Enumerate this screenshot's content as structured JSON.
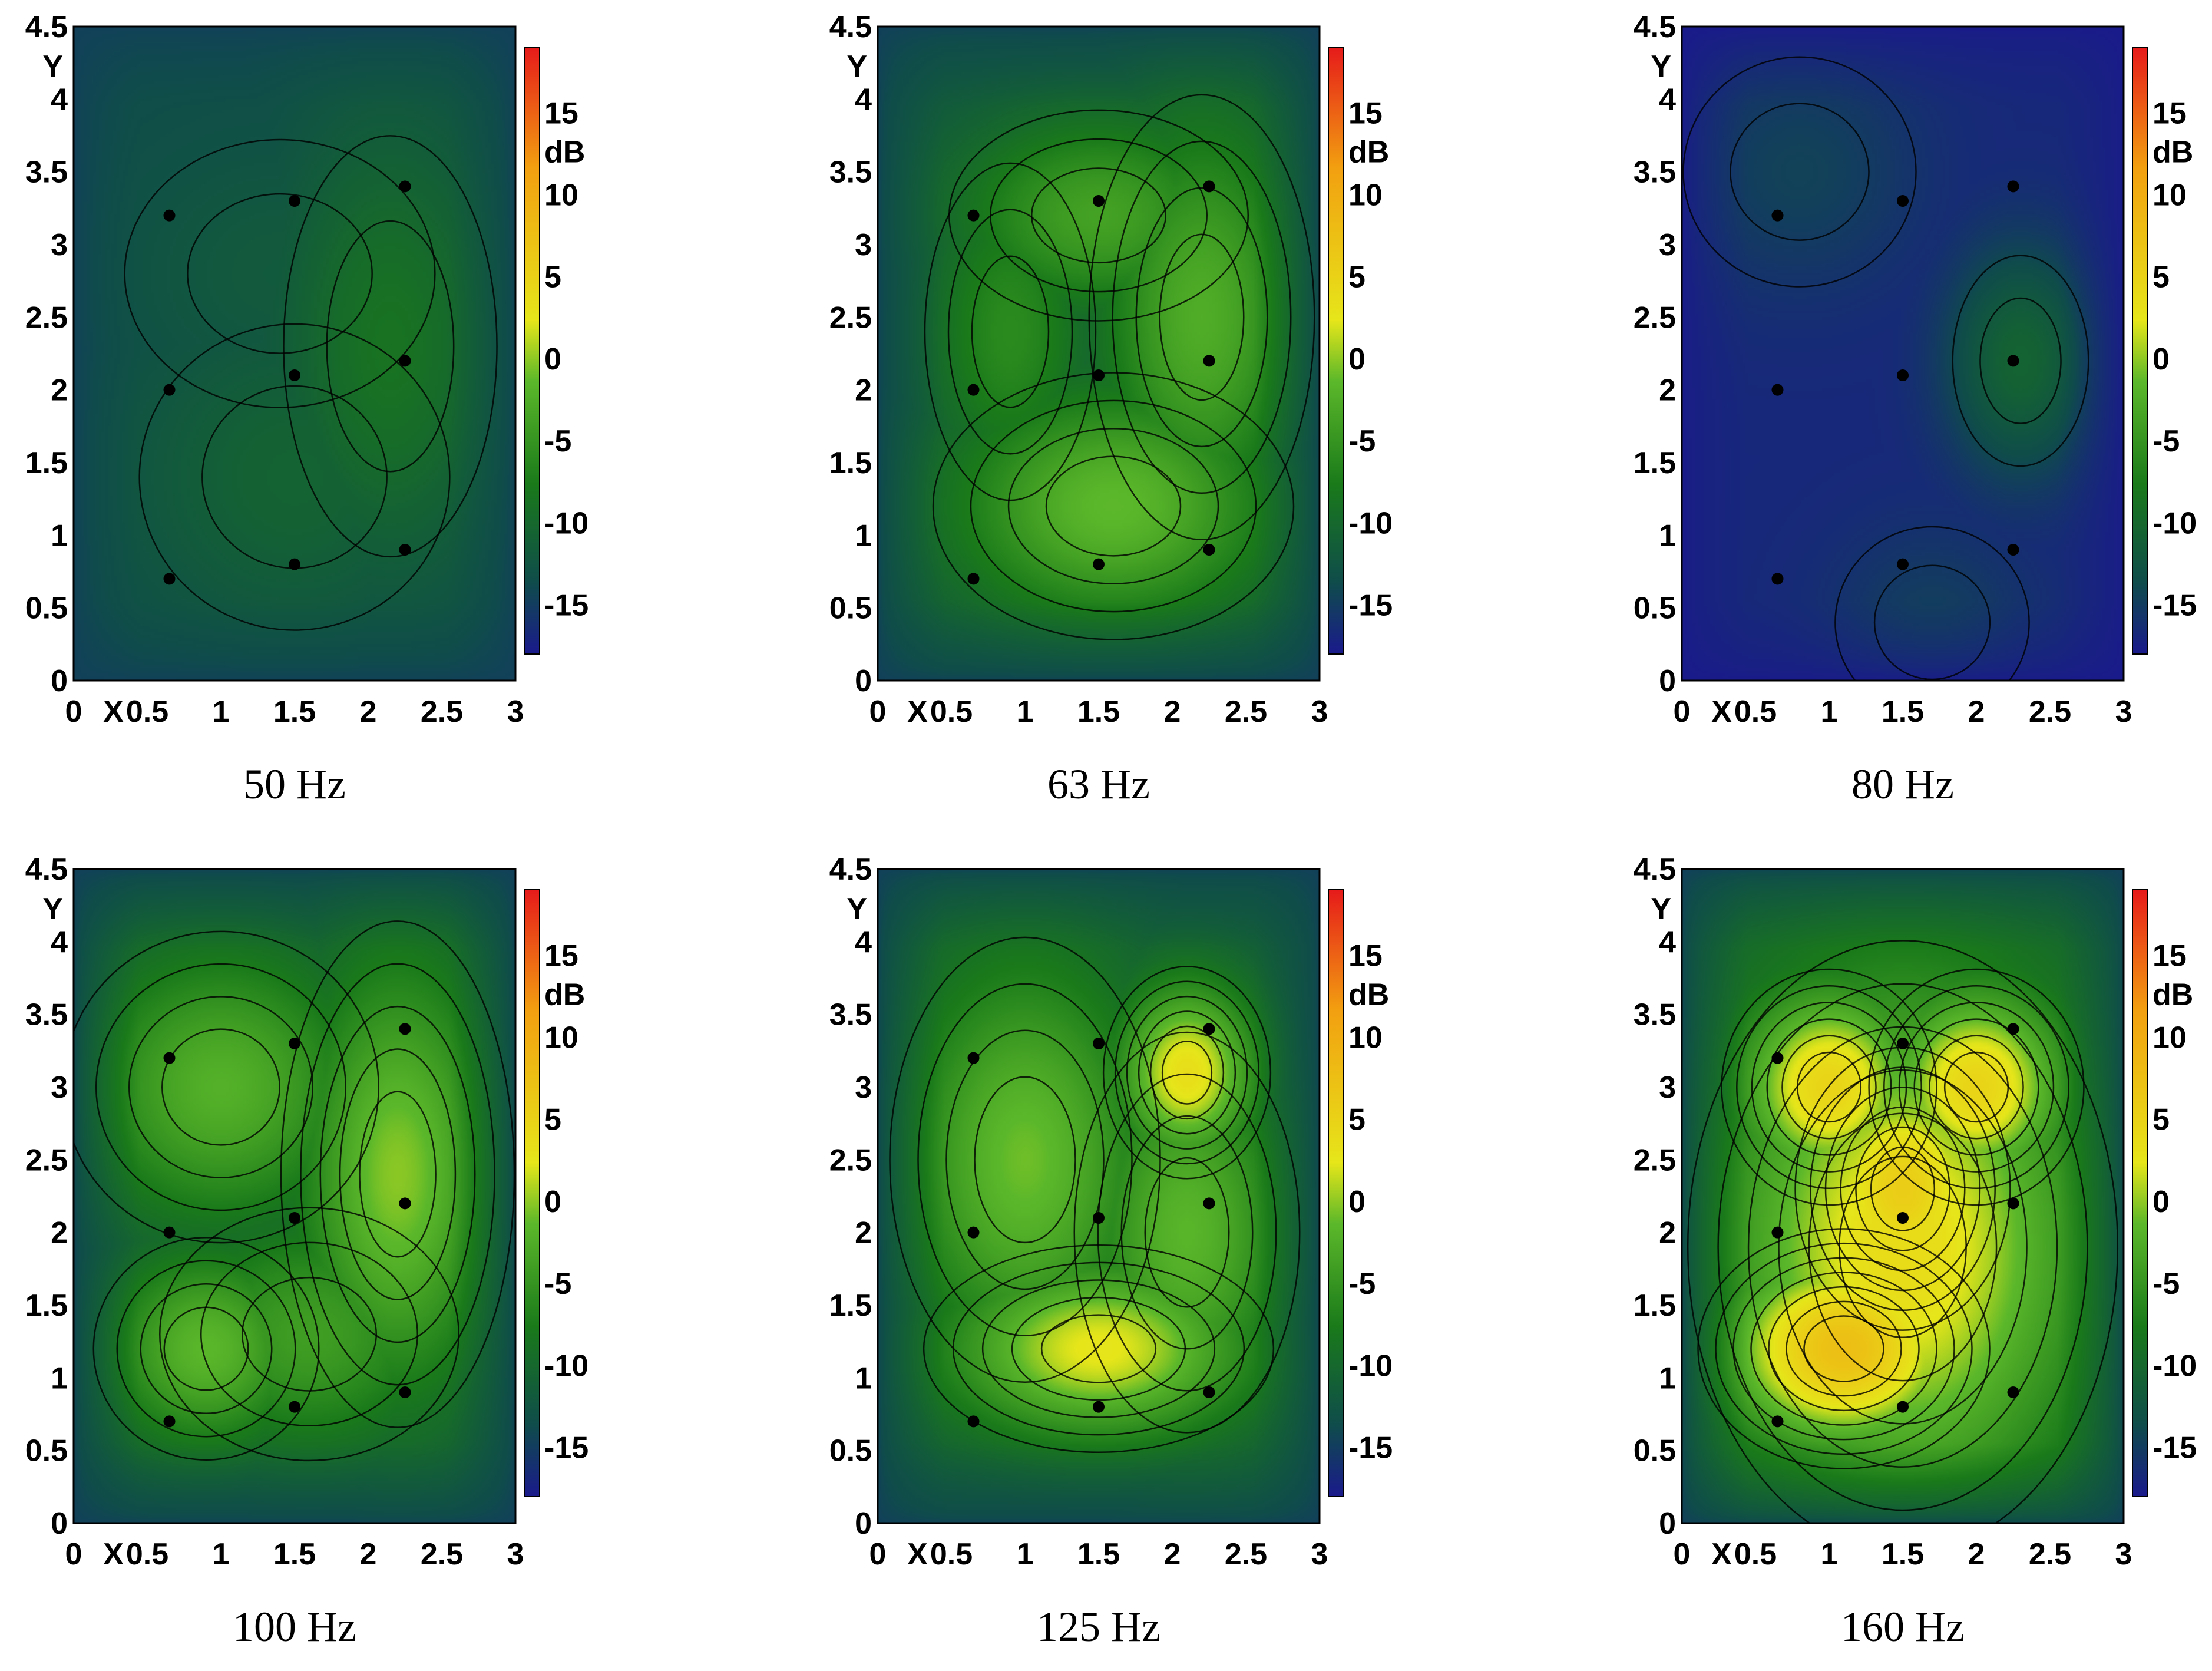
{
  "colorbar": {
    "unit": "dB",
    "range": [
      -18,
      19
    ],
    "ticks": [
      15,
      10,
      5,
      0,
      -5,
      -10,
      -15
    ],
    "colors": [
      "#1a1a8c",
      "#0f4d4a",
      "#1a7a1a",
      "#5cb82a",
      "#e6e61a",
      "#f2a010",
      "#e61a1a"
    ]
  },
  "chart_data": [
    {
      "type": "heatmap",
      "title": "50 Hz",
      "xlabel": "X",
      "ylabel": "Y",
      "xlim": [
        0,
        3
      ],
      "ylim": [
        0,
        4.5
      ],
      "xticks": [
        "0",
        "0.5",
        "1",
        "1.5",
        "2",
        "2.5",
        "3"
      ],
      "yticks": [
        "0",
        "0.5",
        "1",
        "1.5",
        "2",
        "2.5",
        "3",
        "3.5",
        "4",
        "4.5"
      ],
      "points": [
        [
          0.65,
          3.2
        ],
        [
          1.5,
          3.3
        ],
        [
          2.25,
          3.4
        ],
        [
          0.65,
          2.0
        ],
        [
          1.5,
          2.1
        ],
        [
          2.25,
          2.2
        ],
        [
          0.65,
          0.7
        ],
        [
          1.5,
          0.8
        ],
        [
          2.25,
          0.9
        ]
      ],
      "level_range_db": [
        -15,
        -9
      ],
      "peak": [
        2.15,
        2.3
      ]
    },
    {
      "type": "heatmap",
      "title": "63 Hz",
      "xlabel": "X",
      "ylabel": "Y",
      "xlim": [
        0,
        3
      ],
      "ylim": [
        0,
        4.5
      ],
      "xticks": [
        "0",
        "0.5",
        "1",
        "1.5",
        "2",
        "2.5",
        "3"
      ],
      "yticks": [
        "0",
        "0.5",
        "1",
        "1.5",
        "2",
        "2.5",
        "3",
        "3.5",
        "4",
        "4.5"
      ],
      "points": [
        [
          0.65,
          3.2
        ],
        [
          1.5,
          3.3
        ],
        [
          2.25,
          3.4
        ],
        [
          0.65,
          2.0
        ],
        [
          1.5,
          2.1
        ],
        [
          2.25,
          2.2
        ],
        [
          0.65,
          0.7
        ],
        [
          1.5,
          0.8
        ],
        [
          2.25,
          0.9
        ]
      ],
      "level_range_db": [
        -15,
        -2
      ],
      "peak": [
        1.6,
        1.2
      ]
    },
    {
      "type": "heatmap",
      "title": "80 Hz",
      "xlabel": "X",
      "ylabel": "Y",
      "xlim": [
        0,
        3
      ],
      "ylim": [
        0,
        4.5
      ],
      "xticks": [
        "0",
        "0.5",
        "1",
        "1.5",
        "2",
        "2.5",
        "3"
      ],
      "yticks": [
        "0",
        "0.5",
        "1",
        "1.5",
        "2",
        "2.5",
        "3",
        "3.5",
        "4",
        "4.5"
      ],
      "points": [
        [
          0.65,
          3.2
        ],
        [
          1.5,
          3.3
        ],
        [
          2.25,
          3.4
        ],
        [
          0.65,
          2.0
        ],
        [
          1.5,
          2.1
        ],
        [
          2.25,
          2.2
        ],
        [
          0.65,
          0.7
        ],
        [
          1.5,
          0.8
        ],
        [
          2.25,
          0.9
        ]
      ],
      "level_range_db": [
        -18,
        -11
      ],
      "peak": [
        2.3,
        2.2
      ]
    },
    {
      "type": "heatmap",
      "title": "100 Hz",
      "xlabel": "X",
      "ylabel": "Y",
      "xlim": [
        0,
        3
      ],
      "ylim": [
        0,
        4.5
      ],
      "xticks": [
        "0",
        "0.5",
        "1",
        "1.5",
        "2",
        "2.5",
        "3"
      ],
      "yticks": [
        "0",
        "0.5",
        "1",
        "1.5",
        "2",
        "2.5",
        "3",
        "3.5",
        "4",
        "4.5"
      ],
      "points": [
        [
          0.65,
          3.2
        ],
        [
          1.5,
          3.3
        ],
        [
          2.25,
          3.4
        ],
        [
          0.65,
          2.0
        ],
        [
          1.5,
          2.1
        ],
        [
          2.25,
          2.2
        ],
        [
          0.65,
          0.7
        ],
        [
          1.5,
          0.8
        ],
        [
          2.25,
          0.9
        ]
      ],
      "level_range_db": [
        -15,
        -1
      ],
      "peak": [
        2.2,
        2.4
      ]
    },
    {
      "type": "heatmap",
      "title": "125 Hz",
      "xlabel": "X",
      "ylabel": "Y",
      "xlim": [
        0,
        3
      ],
      "ylim": [
        0,
        4.5
      ],
      "xticks": [
        "0",
        "0.5",
        "1",
        "1.5",
        "2",
        "2.5",
        "3"
      ],
      "yticks": [
        "0",
        "0.5",
        "1",
        "1.5",
        "2",
        "2.5",
        "3",
        "3.5",
        "4",
        "4.5"
      ],
      "points": [
        [
          0.65,
          3.2
        ],
        [
          1.5,
          3.3
        ],
        [
          2.25,
          3.4
        ],
        [
          0.65,
          2.0
        ],
        [
          1.5,
          2.1
        ],
        [
          2.25,
          2.2
        ],
        [
          0.65,
          0.7
        ],
        [
          1.5,
          0.8
        ],
        [
          2.25,
          0.9
        ]
      ],
      "level_range_db": [
        -15,
        2
      ],
      "peak": [
        2.1,
        3.1
      ]
    },
    {
      "type": "heatmap",
      "title": "160 Hz",
      "xlabel": "X",
      "ylabel": "Y",
      "xlim": [
        0,
        3
      ],
      "ylim": [
        0,
        4.5
      ],
      "xticks": [
        "0",
        "0.5",
        "1",
        "1.5",
        "2",
        "2.5",
        "3"
      ],
      "yticks": [
        "0",
        "0.5",
        "1",
        "1.5",
        "2",
        "2.5",
        "3",
        "3.5",
        "4",
        "4.5"
      ],
      "points": [
        [
          0.65,
          3.2
        ],
        [
          1.5,
          3.3
        ],
        [
          2.25,
          3.4
        ],
        [
          0.65,
          2.0
        ],
        [
          1.5,
          2.1
        ],
        [
          2.25,
          2.2
        ],
        [
          0.65,
          0.7
        ],
        [
          1.5,
          0.8
        ],
        [
          2.25,
          0.9
        ]
      ],
      "level_range_db": [
        -15,
        6
      ],
      "peak": [
        1.1,
        1.2
      ]
    }
  ]
}
